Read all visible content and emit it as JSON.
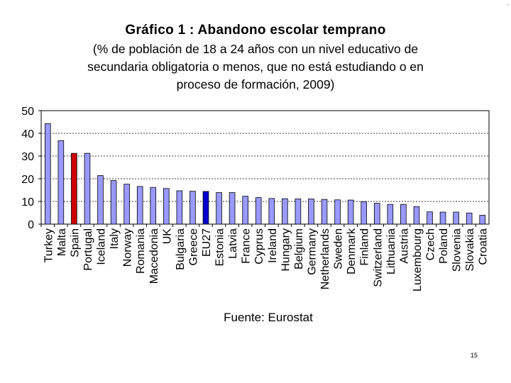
{
  "chart_data": {
    "type": "bar",
    "title": "Gráfico 1 : Abandono escolar temprano",
    "subtitle_lines": [
      "(% de población de 18 a 24 años con un nivel educativo de",
      "secundaria obligatoria o menos, que no está estudiando o en",
      "proceso de formación, 2009)"
    ],
    "categories": [
      "Turkey",
      "Malta",
      "Spain",
      "Portugal",
      "Iceland",
      "Italy",
      "Norway",
      "Romania",
      "Macedonia",
      "UK",
      "Bulgaria",
      "Greece",
      "EU27",
      "Estonia",
      "Latvia",
      "France",
      "Cyprus",
      "Ireland",
      "Hungary",
      "Belgium",
      "Germany",
      "Netherlands",
      "Sweden",
      "Denmark",
      "Finland",
      "Switzerland",
      "Lithuania",
      "Austria",
      "Luxembourg",
      "Czech",
      "Poland",
      "Slovenia",
      "Slovakia",
      "Croatia"
    ],
    "values": [
      44.3,
      36.8,
      31.2,
      31.2,
      21.4,
      19.2,
      17.6,
      16.6,
      16.2,
      15.7,
      14.7,
      14.5,
      14.4,
      13.9,
      13.9,
      12.3,
      11.7,
      11.3,
      11.2,
      11.1,
      11.1,
      10.9,
      10.7,
      10.6,
      9.9,
      9.2,
      8.7,
      8.7,
      7.7,
      5.4,
      5.3,
      5.3,
      4.9,
      3.9
    ],
    "ylim": [
      0,
      50
    ],
    "yticks": [
      0,
      10,
      20,
      30,
      40,
      50
    ],
    "grid": true,
    "bar_color": "#9999ff",
    "highlight": {
      "Spain": "#cc0000",
      "EU27": "#0000cc"
    },
    "source": "Fuente: Eurostat"
  },
  "page_number": "15",
  "corner_mark": "-"
}
